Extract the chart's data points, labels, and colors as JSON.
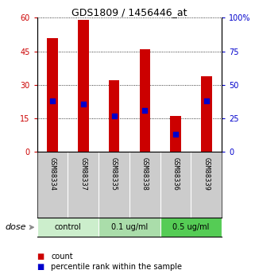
{
  "title": "GDS1809 / 1456446_at",
  "samples": [
    "GSM88334",
    "GSM88337",
    "GSM88335",
    "GSM88338",
    "GSM88336",
    "GSM88339"
  ],
  "counts": [
    51,
    59,
    32,
    46,
    16,
    34
  ],
  "percentile_ranks": [
    38,
    36,
    27,
    31,
    13,
    38
  ],
  "groups": [
    {
      "label": "control",
      "span": [
        0,
        2
      ],
      "color": "#cceecc"
    },
    {
      "label": "0.1 ug/ml",
      "span": [
        2,
        4
      ],
      "color": "#aaddaa"
    },
    {
      "label": "0.5 ug/ml",
      "span": [
        4,
        6
      ],
      "color": "#55cc55"
    }
  ],
  "bar_color": "#cc0000",
  "blue_marker_color": "#0000cc",
  "left_axis_color": "#cc0000",
  "right_axis_color": "#0000cc",
  "ylim_left": [
    0,
    60
  ],
  "ylim_right": [
    0,
    100
  ],
  "yticks_left": [
    0,
    15,
    30,
    45,
    60
  ],
  "yticks_right": [
    0,
    25,
    50,
    75,
    100
  ],
  "background_color": "#ffffff",
  "plot_bg": "#ffffff",
  "bar_width": 0.35,
  "dose_label": "dose",
  "legend_count_label": "count",
  "legend_percentile_label": "percentile rank within the sample",
  "sample_bg": "#cccccc",
  "sample_divider_color": "#ffffff"
}
